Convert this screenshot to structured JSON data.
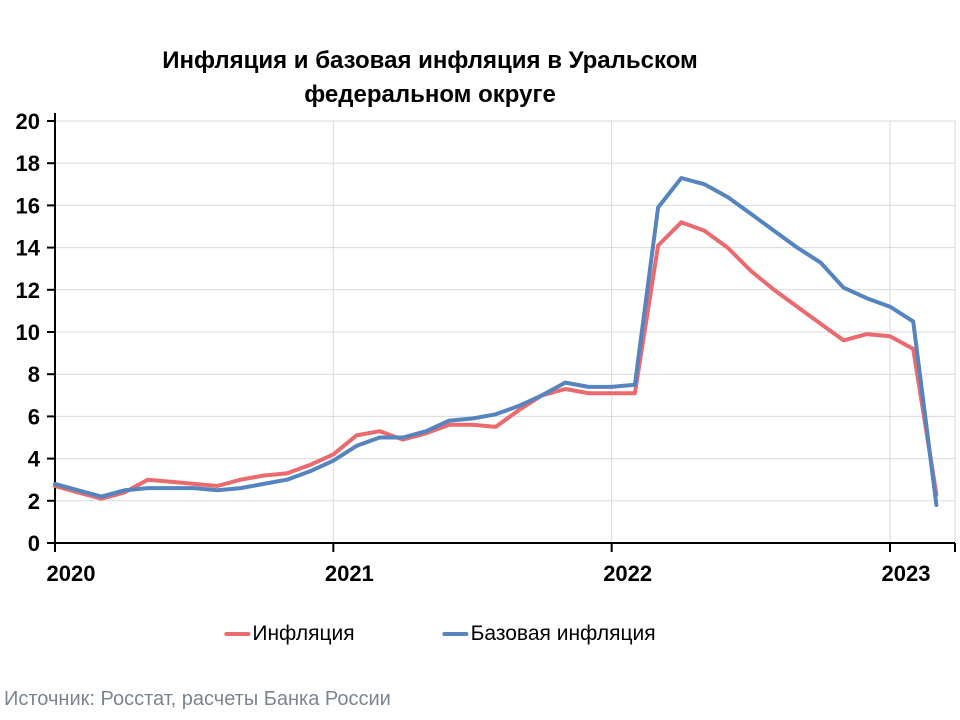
{
  "title": "Инфляция и базовая инфляция в Уральском федеральном округе",
  "legend": [
    {
      "label": "Инфляция",
      "color": "#ea6a6e"
    },
    {
      "label": "Базовая инфляция",
      "color": "#5584be"
    }
  ],
  "footer": {
    "source": "Источник: Росстат, расчеты Банка России"
  },
  "colors": {
    "inflation_line": "#ea6a6e",
    "core_inflation_line": "#5584be",
    "gridline": "#d9d9d9",
    "axis": "#000000",
    "source_text": "#7b8591"
  },
  "chart_data": {
    "type": "line",
    "title": "Инфляция и базовая инфляция в Уральском федеральном округе",
    "xlabel": "",
    "ylabel": "",
    "ylim": [
      0,
      20
    ],
    "yticks": [
      0,
      2,
      4,
      6,
      8,
      10,
      12,
      14,
      16,
      18,
      20
    ],
    "xticks": [
      "2020",
      "2021",
      "2022",
      "2023"
    ],
    "grid": true,
    "legend_position": "bottom",
    "x": [
      "2020-01",
      "2020-02",
      "2020-03",
      "2020-04",
      "2020-05",
      "2020-06",
      "2020-07",
      "2020-08",
      "2020-09",
      "2020-10",
      "2020-11",
      "2020-12",
      "2021-01",
      "2021-02",
      "2021-03",
      "2021-04",
      "2021-05",
      "2021-06",
      "2021-07",
      "2021-08",
      "2021-09",
      "2021-10",
      "2021-11",
      "2021-12",
      "2022-01",
      "2022-02",
      "2022-03",
      "2022-04",
      "2022-05",
      "2022-06",
      "2022-07",
      "2022-08",
      "2022-09",
      "2022-10",
      "2022-11",
      "2022-12",
      "2023-01",
      "2023-02",
      "2023-03"
    ],
    "series": [
      {
        "name": "Инфляция",
        "color": "#ea6a6e",
        "values": [
          2.7,
          2.4,
          2.1,
          2.4,
          3.0,
          2.9,
          2.8,
          2.7,
          3.0,
          3.2,
          3.3,
          3.7,
          4.2,
          5.1,
          5.3,
          4.9,
          5.2,
          5.6,
          5.6,
          5.5,
          6.3,
          7.0,
          7.3,
          7.1,
          7.1,
          7.1,
          14.1,
          15.2,
          14.8,
          14.0,
          12.9,
          12.0,
          11.2,
          10.4,
          9.6,
          9.9,
          9.8,
          9.2,
          2.3
        ]
      },
      {
        "name": "Базовая инфляция",
        "color": "#5584be",
        "values": [
          2.8,
          2.5,
          2.2,
          2.5,
          2.6,
          2.6,
          2.6,
          2.5,
          2.6,
          2.8,
          3.0,
          3.4,
          3.9,
          4.6,
          5.0,
          5.0,
          5.3,
          5.8,
          5.9,
          6.1,
          6.5,
          7.0,
          7.6,
          7.4,
          7.4,
          7.5,
          15.9,
          17.3,
          17.0,
          16.4,
          15.6,
          14.8,
          14.0,
          13.3,
          12.1,
          11.6,
          11.2,
          10.5,
          1.8
        ]
      }
    ]
  }
}
